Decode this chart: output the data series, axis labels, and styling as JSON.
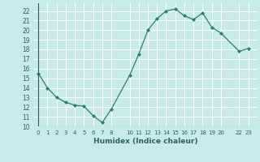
{
  "x": [
    0,
    1,
    2,
    3,
    4,
    5,
    6,
    7,
    8,
    10,
    11,
    12,
    13,
    14,
    15,
    16,
    17,
    18,
    19,
    20,
    22,
    23
  ],
  "y": [
    15.5,
    14.0,
    13.0,
    12.5,
    12.2,
    12.1,
    11.1,
    10.4,
    11.8,
    15.3,
    17.5,
    20.0,
    21.2,
    22.0,
    22.2,
    21.5,
    21.1,
    21.8,
    20.3,
    19.7,
    17.8,
    18.1
  ],
  "line_color": "#2e7d6e",
  "marker_color": "#2e7d6e",
  "bg_color": "#c8eaea",
  "grid_color": "#b0d8d8",
  "xlabel": "Humidex (Indice chaleur)",
  "xlim": [
    -0.5,
    24.0
  ],
  "ylim": [
    10,
    22.8
  ],
  "yticks": [
    10,
    11,
    12,
    13,
    14,
    15,
    16,
    17,
    18,
    19,
    20,
    21,
    22
  ],
  "xtick_positions": [
    0,
    1,
    2,
    3,
    4,
    5,
    6,
    7,
    8,
    10,
    11,
    12,
    13,
    14,
    15,
    16,
    17,
    18,
    19,
    20,
    22,
    23
  ],
  "xtick_labels": [
    "0",
    "1",
    "2",
    "3",
    "4",
    "5",
    "6",
    "7",
    "8",
    "10",
    "11",
    "12",
    "13",
    "14",
    "15",
    "16",
    "17",
    "18",
    "19",
    "20",
    "22",
    "23"
  ]
}
